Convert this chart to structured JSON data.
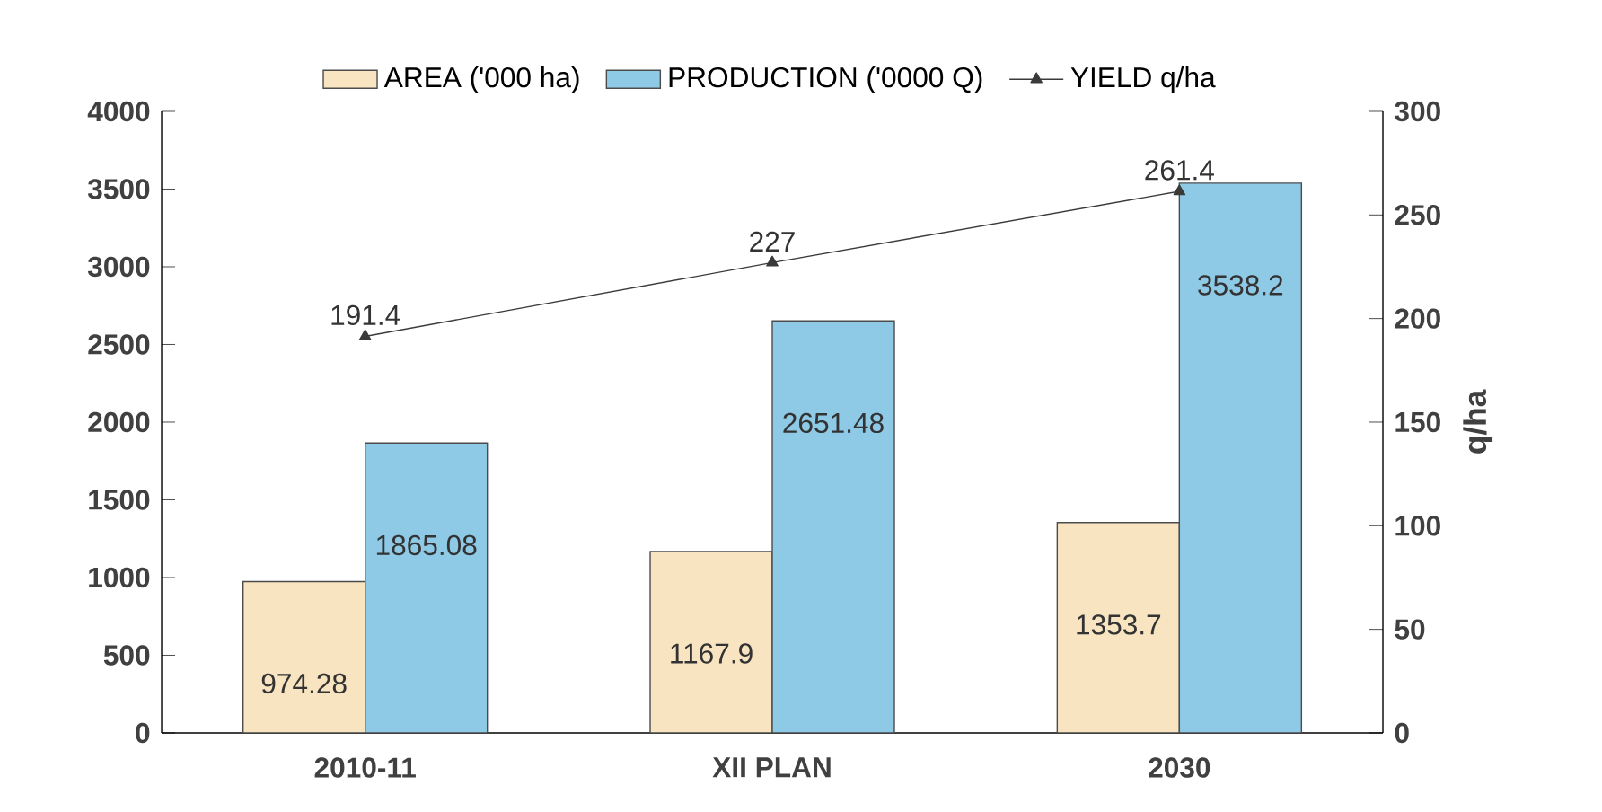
{
  "chart_data": {
    "type": "bar",
    "categories": [
      "2010-11",
      "XII PLAN",
      "2030"
    ],
    "series": [
      {
        "name": "AREA ('000 ha)",
        "color": "#f8e4c0",
        "values": [
          974.28,
          1167.9,
          1353.7
        ]
      },
      {
        "name": "PRODUCTION ('0000 Q)",
        "color": "#8ecae6",
        "values": [
          1865.08,
          2651.48,
          3538.2
        ]
      },
      {
        "name": "YIELD q/ha",
        "type": "line",
        "axis": "y2",
        "color": "#3a3a3a",
        "values": [
          191.4,
          227,
          261.4
        ]
      }
    ],
    "ylim": [
      0,
      4000
    ],
    "yticks": [
      0,
      500,
      1000,
      1500,
      2000,
      2500,
      3000,
      3500,
      4000
    ],
    "y2lim": [
      0,
      300
    ],
    "y2ticks": [
      0,
      50,
      100,
      150,
      200,
      250,
      300
    ],
    "y2label": "q/ha",
    "marker": "triangle",
    "data_labels": true,
    "legend": "top"
  }
}
